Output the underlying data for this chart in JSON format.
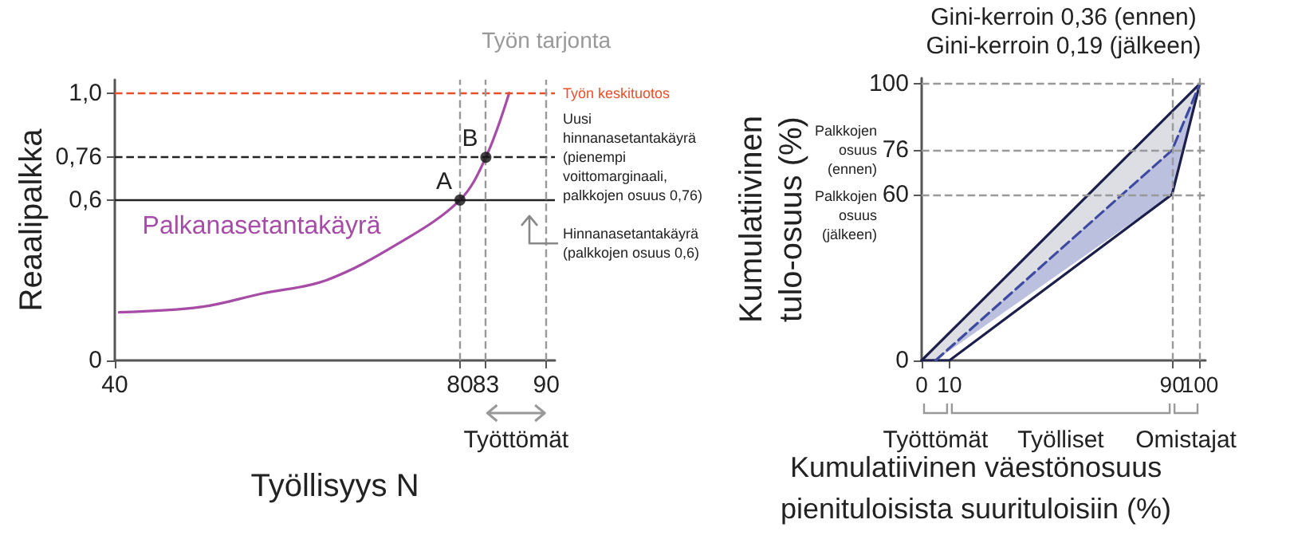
{
  "chart_data": [
    {
      "type": "line",
      "xlabel": "Työllisyys N",
      "ylabel": "Reaalipalkka",
      "xlim": [
        40,
        91
      ],
      "xticks": [
        40,
        80,
        83,
        90
      ],
      "ylim": [
        0,
        1.05
      ],
      "yticks": [
        0,
        {
          "value": 0.6,
          "label": "0,6"
        },
        {
          "value": 0.76,
          "label": "0,76"
        },
        {
          "value": 1.0,
          "label": "1,0"
        }
      ],
      "marker": "none",
      "series": [
        {
          "name": "Palkanasetantakäyrä",
          "color": "#a64ca6",
          "x": [
            40.5,
            50,
            57,
            64.5,
            73,
            80,
            83,
            85.7
          ],
          "values": [
            0.18,
            0.2,
            0.25,
            0.3,
            0.44,
            0.6,
            0.76,
            1.0
          ]
        },
        {
          "type": "scatter",
          "color": "#111111",
          "marker": "circle",
          "x": [
            80,
            83
          ],
          "values": [
            0.6,
            0.76
          ]
        }
      ],
      "ref_lines": [
        {
          "axis": "y",
          "value": 1.0,
          "label": "Työn keskituotos",
          "color": "#e8502a",
          "line_style": "dashed"
        },
        {
          "axis": "y",
          "value": 0.76,
          "label": "Uusi hinnanasetantakäyrä (pienempi voittomarginaali, palkkojen osuus 0,76)",
          "color": "#222222",
          "line_style": "dashed"
        },
        {
          "axis": "y",
          "value": 0.6,
          "label": "Hinnanasetantakäyrä (palkkojen osuus 0,6)",
          "color": "#222222",
          "line_style": "solid"
        },
        {
          "axis": "x",
          "value": 80,
          "color": "#999999",
          "line_style": "dashed"
        },
        {
          "axis": "x",
          "value": 83,
          "color": "#999999",
          "line_style": "dashed"
        },
        {
          "axis": "x",
          "value": 90,
          "label": "Työn tarjonta",
          "color": "#999999",
          "line_style": "dashed"
        }
      ],
      "annotations": [
        {
          "text": "A",
          "x": 80,
          "y": 0.6
        },
        {
          "text": "B",
          "x": 83,
          "y": 0.76
        },
        "Työttömät"
      ]
    },
    {
      "type": "line",
      "xlabel": "Kumulatiivinen väestönosuus pienituloisista suurituloisiin (%)",
      "ylabel": "Kumulatiivinen tulo-osuus (%)",
      "xlim": [
        0,
        102
      ],
      "xticks": [
        0,
        10,
        90,
        100
      ],
      "ylim": [
        0,
        102
      ],
      "yticks": [
        0,
        60,
        76,
        100
      ],
      "marker": "none",
      "series": [
        {
          "color": "#1c1f4a",
          "x": [
            0,
            5,
            90,
            100
          ],
          "values": [
            0,
            5,
            90,
            100
          ],
          "lower": [
            0,
            0,
            76,
            100
          ],
          "upper": [
            0,
            5,
            90,
            100
          ]
        },
        {
          "color": "#1c1f4a",
          "x": [
            0,
            10,
            90,
            100
          ],
          "values": [
            0,
            0,
            60,
            100
          ]
        },
        {
          "color": "#3d4aa0",
          "line_style": "dashed",
          "x": [
            5,
            90,
            100
          ],
          "values": [
            0,
            76,
            100
          ],
          "lower": [
            0,
            60,
            100
          ],
          "upper": [
            0,
            76,
            100
          ]
        }
      ],
      "ref_lines": [
        {
          "axis": "y",
          "value": 100,
          "color": "#999999",
          "line_style": "dashed"
        },
        {
          "axis": "y",
          "value": 76,
          "color": "#999999",
          "line_style": "dashed"
        },
        {
          "axis": "y",
          "value": 60,
          "color": "#999999",
          "line_style": "dashed"
        },
        {
          "axis": "x",
          "value": 90,
          "color": "#999999",
          "line_style": "dashed"
        },
        {
          "axis": "x",
          "value": 100,
          "color": "#999999",
          "line_style": "dashed"
        }
      ],
      "annotations": [
        "Gini-kerroin 0,36 (ennen)",
        "Gini-kerroin 0,19 (jälkeen)",
        "Palkkojen osuus (ennen)",
        "Palkkojen osuus (jälkeen)",
        "Työttömät",
        "Työlliset",
        "Omistajat"
      ]
    }
  ]
}
